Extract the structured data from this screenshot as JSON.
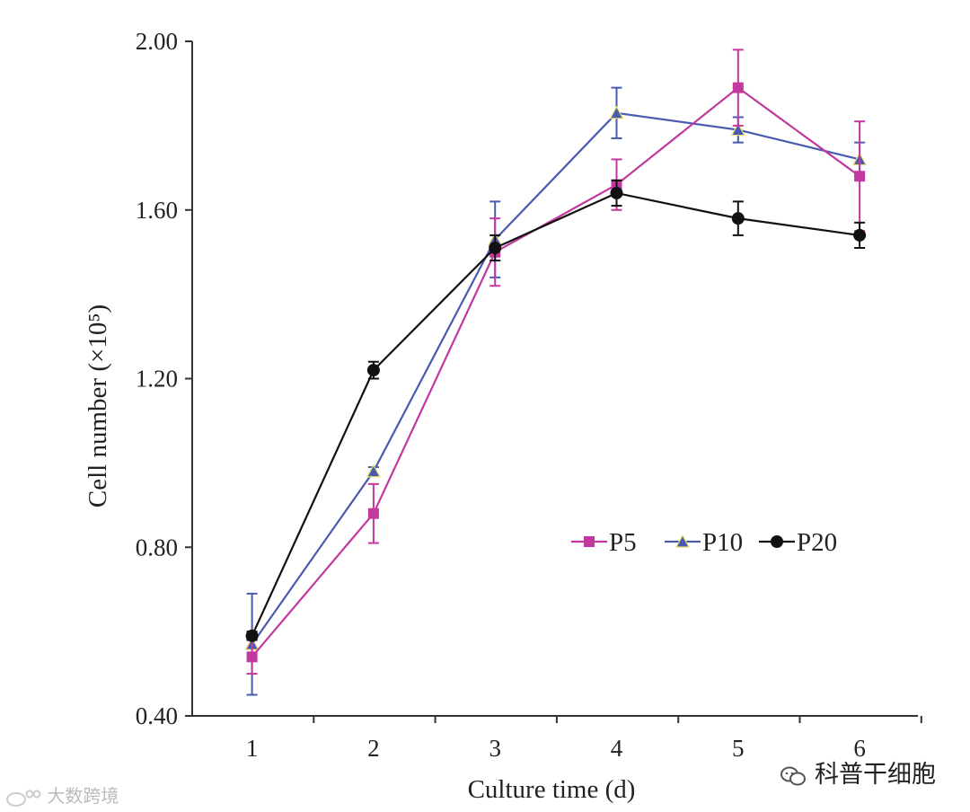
{
  "chart_data": {
    "type": "line",
    "title": "",
    "xlabel": "Culture time (d)",
    "ylabel": "Cell number (×10⁵)",
    "x": [
      1,
      2,
      3,
      4,
      5,
      6
    ],
    "xticks": [
      "1",
      "2",
      "3",
      "4",
      "5",
      "6"
    ],
    "yticks": [
      "0.40",
      "0.80",
      "1.20",
      "1.60",
      "2.00"
    ],
    "ylim": [
      0.4,
      2.0
    ],
    "grid": false,
    "legend_position": "lower-right",
    "series": [
      {
        "name": "P5",
        "color": "#c2389e",
        "marker": "square",
        "values": [
          0.54,
          0.88,
          1.5,
          1.66,
          1.89,
          1.68
        ],
        "errors": [
          0.04,
          0.07,
          0.08,
          0.06,
          0.09,
          0.13
        ]
      },
      {
        "name": "P10",
        "color": "#4a5ab0",
        "marker": "triangle",
        "values": [
          0.57,
          0.98,
          1.53,
          1.83,
          1.79,
          1.72
        ],
        "errors": [
          0.12,
          0.01,
          0.09,
          0.06,
          0.03,
          0.04
        ]
      },
      {
        "name": "P20",
        "color": "#111111",
        "marker": "diamond",
        "values": [
          0.59,
          1.22,
          1.51,
          1.64,
          1.58,
          1.54
        ],
        "errors": [
          0.01,
          0.02,
          0.03,
          0.03,
          0.04,
          0.03
        ]
      }
    ]
  },
  "watermarks": {
    "right": "科普干细胞",
    "left": "大数跨境"
  },
  "icons": {
    "wechat": "wechat-icon",
    "weibo": "weibo-icon"
  }
}
